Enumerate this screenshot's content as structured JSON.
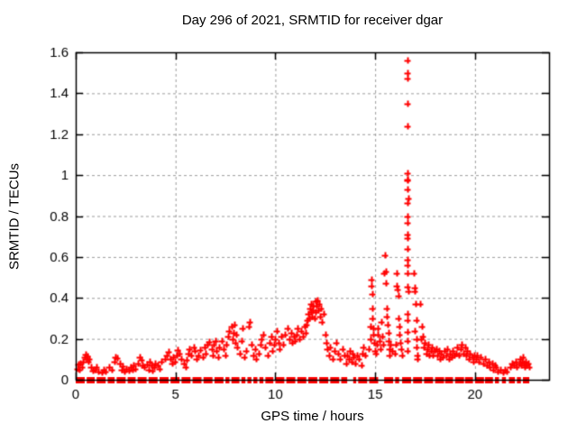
{
  "page": {
    "background": "#ffffff"
  },
  "chart_data": {
    "type": "scatter",
    "title": "Day 296 of 2021, SRMTID for receiver dgar",
    "xlabel": "GPS time / hours",
    "ylabel": "SRMTID / TECUs",
    "xlim": [
      0,
      23.71
    ],
    "ylim": [
      0,
      1.6
    ],
    "xticks": {
      "values": [
        0,
        5,
        10,
        15,
        20
      ],
      "labels": [
        "0",
        "5",
        "10",
        "15",
        "20"
      ]
    },
    "yticks": {
      "values": [
        0,
        0.2,
        0.4,
        0.6,
        0.8,
        1.0,
        1.2,
        1.4,
        1.6
      ],
      "labels": [
        "0",
        "0.2",
        "0.4",
        "0.6",
        "0.8",
        "1",
        "1.2",
        "1.4",
        "1.6"
      ]
    },
    "grid": true,
    "legend": "none",
    "marker": {
      "shape": "plus",
      "color": "#ff0000",
      "size": 7
    },
    "grid_color": "#9c9c9c",
    "axis_color": "#000000",
    "series_name": "SRMTID",
    "points": [
      [
        0.08,
        0.055
      ],
      [
        0.12,
        0.075
      ],
      [
        0.18,
        0.05
      ],
      [
        0.22,
        0.08
      ],
      [
        0.3,
        0.06
      ],
      [
        0.38,
        0.09
      ],
      [
        0.45,
        0.11
      ],
      [
        0.5,
        0.125
      ],
      [
        0.55,
        0.1
      ],
      [
        0.6,
        0.115
      ],
      [
        0.65,
        0.09
      ],
      [
        0.7,
        0.1
      ],
      [
        0.78,
        0.06
      ],
      [
        0.85,
        0.045
      ],
      [
        0.95,
        0.05
      ],
      [
        1.05,
        0.06
      ],
      [
        1.15,
        0.04
      ],
      [
        1.3,
        0.035
      ],
      [
        1.4,
        0.05
      ],
      [
        1.5,
        0.04
      ],
      [
        1.65,
        0.06
      ],
      [
        1.8,
        0.05
      ],
      [
        1.95,
        0.09
      ],
      [
        2.0,
        0.11
      ],
      [
        2.1,
        0.105
      ],
      [
        2.2,
        0.08
      ],
      [
        2.3,
        0.05
      ],
      [
        2.35,
        0.065
      ],
      [
        2.45,
        0.04
      ],
      [
        2.55,
        0.055
      ],
      [
        2.65,
        0.045
      ],
      [
        2.75,
        0.06
      ],
      [
        2.85,
        0.05
      ],
      [
        2.9,
        0.07
      ],
      [
        2.98,
        0.055
      ],
      [
        3.1,
        0.08
      ],
      [
        3.2,
        0.11
      ],
      [
        3.3,
        0.095
      ],
      [
        3.35,
        0.07
      ],
      [
        3.45,
        0.06
      ],
      [
        3.55,
        0.075
      ],
      [
        3.65,
        0.05
      ],
      [
        3.7,
        0.09
      ],
      [
        3.8,
        0.07
      ],
      [
        3.85,
        0.045
      ],
      [
        3.92,
        0.06
      ],
      [
        3.98,
        0.08
      ],
      [
        4.1,
        0.07
      ],
      [
        4.2,
        0.055
      ],
      [
        4.3,
        0.09
      ],
      [
        4.45,
        0.1
      ],
      [
        4.55,
        0.12
      ],
      [
        4.65,
        0.135
      ],
      [
        4.75,
        0.1
      ],
      [
        4.85,
        0.08
      ],
      [
        4.9,
        0.11
      ],
      [
        4.98,
        0.09
      ],
      [
        5.05,
        0.12
      ],
      [
        5.1,
        0.145
      ],
      [
        5.2,
        0.13
      ],
      [
        5.3,
        0.1
      ],
      [
        5.4,
        0.08
      ],
      [
        5.5,
        0.06
      ],
      [
        5.55,
        0.095
      ],
      [
        5.65,
        0.13
      ],
      [
        5.7,
        0.15
      ],
      [
        5.8,
        0.12
      ],
      [
        5.9,
        0.16
      ],
      [
        5.98,
        0.14
      ],
      [
        6.05,
        0.1
      ],
      [
        6.15,
        0.12
      ],
      [
        6.25,
        0.145
      ],
      [
        6.35,
        0.11
      ],
      [
        6.45,
        0.16
      ],
      [
        6.5,
        0.13
      ],
      [
        6.6,
        0.17
      ],
      [
        6.7,
        0.185
      ],
      [
        6.8,
        0.15
      ],
      [
        6.85,
        0.12
      ],
      [
        6.92,
        0.17
      ],
      [
        6.98,
        0.19
      ],
      [
        7.05,
        0.14
      ],
      [
        7.15,
        0.11
      ],
      [
        7.2,
        0.16
      ],
      [
        7.3,
        0.19
      ],
      [
        7.4,
        0.15
      ],
      [
        7.5,
        0.12
      ],
      [
        7.55,
        0.17
      ],
      [
        7.65,
        0.21
      ],
      [
        7.7,
        0.24
      ],
      [
        7.8,
        0.26
      ],
      [
        7.85,
        0.2
      ],
      [
        7.9,
        0.23
      ],
      [
        7.95,
        0.27
      ],
      [
        8.0,
        0.18
      ],
      [
        8.05,
        0.22
      ],
      [
        8.1,
        0.16
      ],
      [
        8.2,
        0.13
      ],
      [
        8.3,
        0.19
      ],
      [
        8.35,
        0.25
      ],
      [
        8.45,
        0.11
      ],
      [
        8.55,
        0.14
      ],
      [
        8.65,
        0.26
      ],
      [
        8.7,
        0.28
      ],
      [
        8.8,
        0.17
      ],
      [
        8.9,
        0.12
      ],
      [
        8.98,
        0.15
      ],
      [
        9.05,
        0.1
      ],
      [
        9.15,
        0.13
      ],
      [
        9.25,
        0.17
      ],
      [
        9.3,
        0.2
      ],
      [
        9.4,
        0.22
      ],
      [
        9.5,
        0.16
      ],
      [
        9.6,
        0.12
      ],
      [
        9.7,
        0.18
      ],
      [
        9.8,
        0.21
      ],
      [
        9.85,
        0.14
      ],
      [
        9.92,
        0.17
      ],
      [
        9.98,
        0.2
      ],
      [
        10.05,
        0.24
      ],
      [
        10.15,
        0.18
      ],
      [
        10.2,
        0.15
      ],
      [
        10.3,
        0.21
      ],
      [
        10.4,
        0.17
      ],
      [
        10.5,
        0.22
      ],
      [
        10.6,
        0.25
      ],
      [
        10.7,
        0.2
      ],
      [
        10.8,
        0.23
      ],
      [
        10.85,
        0.18
      ],
      [
        10.92,
        0.21
      ],
      [
        10.98,
        0.19
      ],
      [
        11.05,
        0.22
      ],
      [
        11.1,
        0.25
      ],
      [
        11.2,
        0.2
      ],
      [
        11.3,
        0.24
      ],
      [
        11.4,
        0.21
      ],
      [
        11.45,
        0.26
      ],
      [
        11.5,
        0.23
      ],
      [
        11.58,
        0.27
      ],
      [
        11.62,
        0.29
      ],
      [
        11.65,
        0.32
      ],
      [
        11.7,
        0.3
      ],
      [
        11.72,
        0.35
      ],
      [
        11.78,
        0.33
      ],
      [
        11.8,
        0.37
      ],
      [
        11.85,
        0.31
      ],
      [
        11.88,
        0.34
      ],
      [
        11.9,
        0.36
      ],
      [
        11.95,
        0.3
      ],
      [
        12.0,
        0.385
      ],
      [
        12.02,
        0.33
      ],
      [
        12.05,
        0.36
      ],
      [
        12.1,
        0.39
      ],
      [
        12.15,
        0.34
      ],
      [
        12.2,
        0.37
      ],
      [
        12.25,
        0.31
      ],
      [
        12.3,
        0.35
      ],
      [
        12.35,
        0.28
      ],
      [
        12.42,
        0.32
      ],
      [
        12.5,
        0.22
      ],
      [
        12.55,
        0.18
      ],
      [
        12.6,
        0.15
      ],
      [
        12.7,
        0.12
      ],
      [
        12.75,
        0.16
      ],
      [
        12.85,
        0.1
      ],
      [
        12.95,
        0.14
      ],
      [
        13.05,
        0.18
      ],
      [
        13.15,
        0.13
      ],
      [
        13.25,
        0.1
      ],
      [
        13.35,
        0.15
      ],
      [
        13.45,
        0.12
      ],
      [
        13.55,
        0.08
      ],
      [
        13.6,
        0.12
      ],
      [
        13.7,
        0.1
      ],
      [
        13.75,
        0.14
      ],
      [
        13.8,
        0.09
      ],
      [
        13.85,
        0.13
      ],
      [
        13.9,
        0.11
      ],
      [
        14.0,
        0.08
      ],
      [
        14.1,
        0.12
      ],
      [
        14.2,
        0.1
      ],
      [
        14.3,
        0.07
      ],
      [
        14.35,
        0.13
      ],
      [
        14.4,
        0.16
      ],
      [
        14.48,
        0.12
      ],
      [
        14.7,
        0.15
      ],
      [
        14.75,
        0.2
      ],
      [
        14.78,
        0.26
      ],
      [
        14.8,
        0.49
      ],
      [
        14.82,
        0.46
      ],
      [
        14.85,
        0.42
      ],
      [
        14.85,
        0.35
      ],
      [
        14.88,
        0.3
      ],
      [
        14.9,
        0.25
      ],
      [
        14.92,
        0.22
      ],
      [
        14.95,
        0.18
      ],
      [
        14.98,
        0.14
      ],
      [
        15.05,
        0.13
      ],
      [
        15.1,
        0.17
      ],
      [
        15.12,
        0.22
      ],
      [
        15.15,
        0.25
      ],
      [
        15.2,
        0.19
      ],
      [
        15.25,
        0.15
      ],
      [
        15.3,
        0.28
      ],
      [
        15.35,
        0.21
      ],
      [
        15.38,
        0.17
      ],
      [
        15.45,
        0.52
      ],
      [
        15.5,
        0.61
      ],
      [
        15.52,
        0.53
      ],
      [
        15.55,
        0.47
      ],
      [
        15.58,
        0.35
      ],
      [
        15.6,
        0.31
      ],
      [
        15.62,
        0.27
      ],
      [
        15.65,
        0.23
      ],
      [
        15.68,
        0.19
      ],
      [
        15.7,
        0.15
      ],
      [
        15.72,
        0.12
      ],
      [
        15.78,
        0.17
      ],
      [
        15.85,
        0.14
      ],
      [
        16.0,
        0.13
      ],
      [
        16.05,
        0.17
      ],
      [
        16.08,
        0.52
      ],
      [
        16.1,
        0.46
      ],
      [
        16.12,
        0.44
      ],
      [
        16.15,
        0.41
      ],
      [
        16.18,
        0.3
      ],
      [
        16.2,
        0.26
      ],
      [
        16.22,
        0.22
      ],
      [
        16.25,
        0.18
      ],
      [
        16.3,
        0.15
      ],
      [
        16.35,
        0.12
      ],
      [
        16.6,
        1.56
      ],
      [
        16.6,
        1.5
      ],
      [
        16.62,
        1.47
      ],
      [
        16.6,
        1.35
      ],
      [
        16.62,
        1.24
      ],
      [
        16.63,
        1.01
      ],
      [
        16.62,
        0.98
      ],
      [
        16.64,
        0.975
      ],
      [
        16.63,
        0.93
      ],
      [
        16.65,
        0.885
      ],
      [
        16.63,
        0.865
      ],
      [
        16.62,
        0.8
      ],
      [
        16.64,
        0.765
      ],
      [
        16.6,
        0.71
      ],
      [
        16.63,
        0.69
      ],
      [
        16.62,
        0.64
      ],
      [
        16.6,
        0.585
      ],
      [
        16.64,
        0.56
      ],
      [
        16.62,
        0.52
      ],
      [
        16.63,
        0.455
      ],
      [
        16.65,
        0.43
      ],
      [
        16.6,
        0.32
      ],
      [
        16.62,
        0.29
      ],
      [
        16.64,
        0.235
      ],
      [
        16.62,
        0.19
      ],
      [
        16.6,
        0.14
      ],
      [
        16.95,
        0.52
      ],
      [
        16.98,
        0.45
      ],
      [
        17.0,
        0.43
      ],
      [
        17.02,
        0.37
      ],
      [
        17.05,
        0.29
      ],
      [
        17.0,
        0.24
      ],
      [
        17.05,
        0.2
      ],
      [
        17.08,
        0.16
      ],
      [
        17.1,
        0.12
      ],
      [
        17.12,
        0.1
      ],
      [
        17.25,
        0.37
      ],
      [
        17.3,
        0.2
      ],
      [
        17.35,
        0.26
      ],
      [
        17.4,
        0.21
      ],
      [
        17.45,
        0.16
      ],
      [
        17.5,
        0.18
      ],
      [
        17.55,
        0.13
      ],
      [
        17.6,
        0.15
      ],
      [
        17.65,
        0.17
      ],
      [
        17.7,
        0.12
      ],
      [
        17.8,
        0.14
      ],
      [
        17.85,
        0.16
      ],
      [
        17.9,
        0.12
      ],
      [
        17.98,
        0.14
      ],
      [
        18.05,
        0.15
      ],
      [
        18.1,
        0.12
      ],
      [
        18.2,
        0.14
      ],
      [
        18.25,
        0.1
      ],
      [
        18.3,
        0.13
      ],
      [
        18.4,
        0.11
      ],
      [
        18.45,
        0.14
      ],
      [
        18.55,
        0.12
      ],
      [
        18.6,
        0.15
      ],
      [
        18.7,
        0.1
      ],
      [
        18.75,
        0.13
      ],
      [
        18.85,
        0.11
      ],
      [
        18.9,
        0.14
      ],
      [
        18.98,
        0.12
      ],
      [
        19.05,
        0.13
      ],
      [
        19.1,
        0.16
      ],
      [
        19.2,
        0.12
      ],
      [
        19.3,
        0.15
      ],
      [
        19.35,
        0.17
      ],
      [
        19.4,
        0.13
      ],
      [
        19.5,
        0.16
      ],
      [
        19.55,
        0.12
      ],
      [
        19.6,
        0.14
      ],
      [
        19.7,
        0.1
      ],
      [
        19.75,
        0.13
      ],
      [
        19.85,
        0.11
      ],
      [
        19.9,
        0.09
      ],
      [
        19.98,
        0.12
      ],
      [
        20.05,
        0.1
      ],
      [
        20.1,
        0.12
      ],
      [
        20.2,
        0.09
      ],
      [
        20.3,
        0.11
      ],
      [
        20.4,
        0.08
      ],
      [
        20.5,
        0.1
      ],
      [
        20.6,
        0.07
      ],
      [
        20.7,
        0.09
      ],
      [
        20.75,
        0.06
      ],
      [
        20.85,
        0.08
      ],
      [
        20.9,
        0.05
      ],
      [
        20.98,
        0.07
      ],
      [
        21.05,
        0.06
      ],
      [
        21.15,
        0.04
      ],
      [
        21.25,
        0.05
      ],
      [
        21.4,
        0.035
      ],
      [
        21.5,
        0.05
      ],
      [
        21.6,
        0.04
      ],
      [
        21.75,
        0.06
      ],
      [
        21.85,
        0.08
      ],
      [
        21.95,
        0.07
      ],
      [
        22.05,
        0.09
      ],
      [
        22.1,
        0.06
      ],
      [
        22.2,
        0.08
      ],
      [
        22.25,
        0.1
      ],
      [
        22.3,
        0.07
      ],
      [
        22.35,
        0.09
      ],
      [
        22.4,
        0.11
      ],
      [
        22.45,
        0.08
      ],
      [
        22.5,
        0.06
      ],
      [
        22.55,
        0.09
      ],
      [
        22.6,
        0.07
      ],
      [
        22.65,
        0.08
      ],
      [
        22.7,
        0.06
      ]
    ],
    "zero_band_segments": [
      [
        0.0,
        0.45
      ],
      [
        0.55,
        0.95
      ],
      [
        1.05,
        1.5
      ],
      [
        1.6,
        1.95
      ],
      [
        2.05,
        2.5
      ],
      [
        2.6,
        3.0
      ],
      [
        3.1,
        3.55
      ],
      [
        3.65,
        4.1
      ],
      [
        4.2,
        4.65
      ],
      [
        4.75,
        5.2
      ],
      [
        5.3,
        5.75
      ],
      [
        5.85,
        6.3
      ],
      [
        6.4,
        6.85
      ],
      [
        6.95,
        7.4
      ],
      [
        7.5,
        7.7
      ],
      [
        7.8,
        8.2
      ],
      [
        8.3,
        8.5
      ],
      [
        8.6,
        8.8
      ],
      [
        8.9,
        9.1
      ],
      [
        9.2,
        9.4
      ],
      [
        9.5,
        9.9
      ],
      [
        10.0,
        10.45
      ],
      [
        10.55,
        11.0
      ],
      [
        11.1,
        11.55
      ],
      [
        11.65,
        12.1
      ],
      [
        12.2,
        12.65
      ],
      [
        12.75,
        13.2
      ],
      [
        13.3,
        13.6
      ],
      [
        13.9,
        14.05
      ],
      [
        14.15,
        14.6
      ],
      [
        14.7,
        15.15
      ],
      [
        15.45,
        15.9
      ],
      [
        16.0,
        16.2
      ],
      [
        16.35,
        16.8
      ],
      [
        16.9,
        17.35
      ],
      [
        17.45,
        17.9
      ],
      [
        18.0,
        18.45
      ],
      [
        18.5,
        18.9
      ],
      [
        19.0,
        19.45
      ],
      [
        19.5,
        19.9
      ],
      [
        20.0,
        20.45
      ],
      [
        20.5,
        20.9
      ],
      [
        21.0,
        21.2
      ],
      [
        21.35,
        21.55
      ],
      [
        21.7,
        22.0
      ],
      [
        22.1,
        22.3
      ],
      [
        22.4,
        22.72
      ]
    ]
  }
}
